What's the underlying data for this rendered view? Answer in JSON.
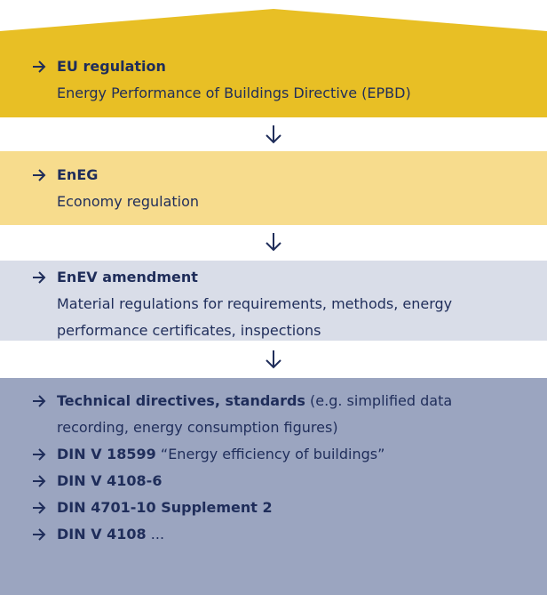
{
  "boxes": [
    {
      "title": "EU regulation",
      "text": "Energy Performance of Buildings Directive (EPBD)"
    },
    {
      "title": "EnEG",
      "text": "Economy regulation"
    },
    {
      "title": "EnEV amendment",
      "text": "Material regulations for requirements, methods, energy performance certificates, inspections"
    }
  ],
  "list": [
    {
      "bold": "Technical directives, standards",
      "rest": " (e.g. simplified data recording, energy consumption figures)"
    },
    {
      "bold": "DIN V 18599",
      "rest": " “Energy efficiency of buildings”"
    },
    {
      "bold": "DIN V 4108-6"
    },
    {
      "bold": "DIN 4701-10 Supplement 2"
    },
    {
      "bold": "DIN V 4108",
      "rest": " ..."
    }
  ]
}
